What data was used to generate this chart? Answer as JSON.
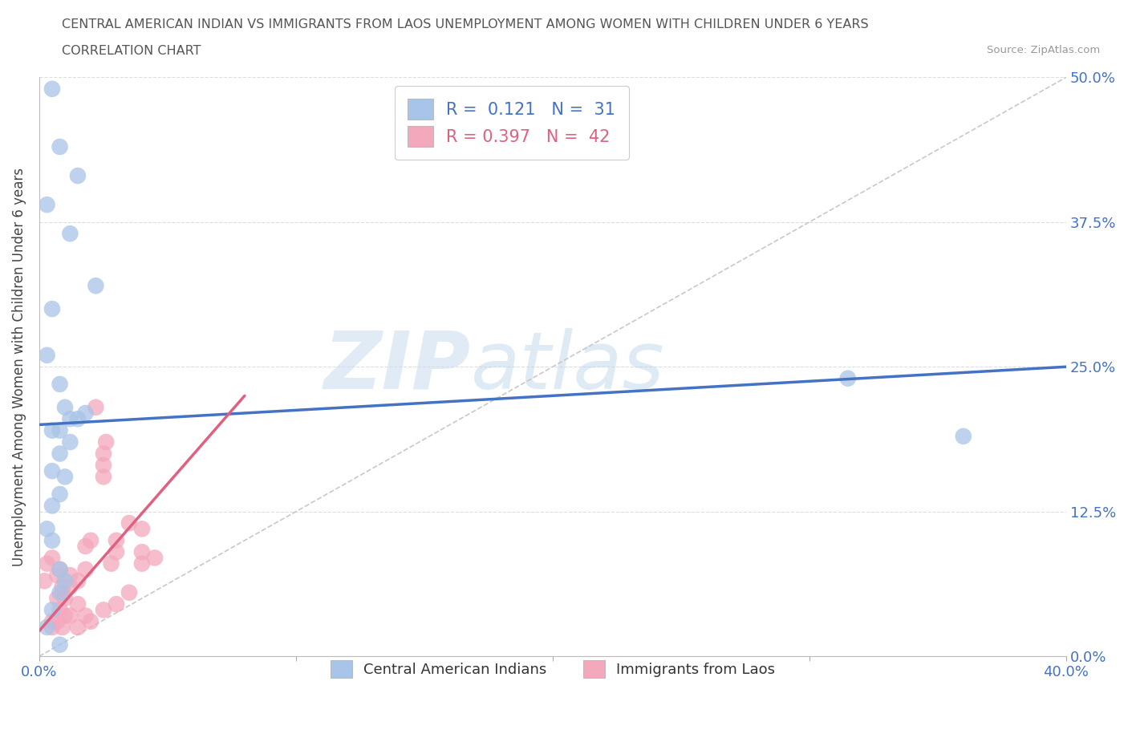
{
  "title_line1": "CENTRAL AMERICAN INDIAN VS IMMIGRANTS FROM LAOS UNEMPLOYMENT AMONG WOMEN WITH CHILDREN UNDER 6 YEARS",
  "title_line2": "CORRELATION CHART",
  "source": "Source: ZipAtlas.com",
  "ylabel": "Unemployment Among Women with Children Under 6 years",
  "xlim": [
    0.0,
    0.4
  ],
  "ylim": [
    0.0,
    0.5
  ],
  "xtick_vals": [
    0.0,
    0.1,
    0.2,
    0.3,
    0.4
  ],
  "xtick_labels": [
    "0.0%",
    "",
    "",
    "",
    "40.0%"
  ],
  "ytick_vals": [
    0.0,
    0.125,
    0.25,
    0.375,
    0.5
  ],
  "ytick_labels": [
    "0.0%",
    "12.5%",
    "25.0%",
    "37.5%",
    "50.0%"
  ],
  "watermark_zip": "ZIP",
  "watermark_atlas": "atlas",
  "blue_R": "0.121",
  "blue_N": "31",
  "pink_R": "0.397",
  "pink_N": "42",
  "blue_color": "#A8C4E8",
  "pink_color": "#F4A8BC",
  "blue_line_color": "#4472C4",
  "pink_line_color": "#E06080",
  "ref_line_color": "#C8C8C8",
  "legend_label_blue": "Central American Indians",
  "legend_label_pink": "Immigrants from Laos",
  "blue_scatter_x": [
    0.005,
    0.015,
    0.008,
    0.003,
    0.012,
    0.022,
    0.005,
    0.003,
    0.008,
    0.01,
    0.012,
    0.015,
    0.018,
    0.008,
    0.012,
    0.005,
    0.008,
    0.005,
    0.01,
    0.008,
    0.005,
    0.003,
    0.005,
    0.008,
    0.01,
    0.008,
    0.005,
    0.003,
    0.008,
    0.315,
    0.36
  ],
  "blue_scatter_y": [
    0.49,
    0.415,
    0.44,
    0.39,
    0.365,
    0.32,
    0.3,
    0.26,
    0.235,
    0.215,
    0.205,
    0.205,
    0.21,
    0.195,
    0.185,
    0.195,
    0.175,
    0.16,
    0.155,
    0.14,
    0.13,
    0.11,
    0.1,
    0.075,
    0.065,
    0.055,
    0.04,
    0.025,
    0.01,
    0.24,
    0.19
  ],
  "pink_scatter_x": [
    0.002,
    0.003,
    0.005,
    0.005,
    0.007,
    0.007,
    0.008,
    0.008,
    0.009,
    0.009,
    0.01,
    0.01,
    0.012,
    0.012,
    0.015,
    0.015,
    0.018,
    0.018,
    0.02,
    0.022,
    0.025,
    0.025,
    0.025,
    0.026,
    0.028,
    0.03,
    0.03,
    0.035,
    0.04,
    0.04,
    0.04,
    0.045,
    0.005,
    0.007,
    0.009,
    0.012,
    0.015,
    0.018,
    0.02,
    0.025,
    0.03,
    0.035
  ],
  "pink_scatter_y": [
    0.065,
    0.08,
    0.085,
    0.025,
    0.07,
    0.05,
    0.04,
    0.075,
    0.055,
    0.06,
    0.035,
    0.05,
    0.06,
    0.07,
    0.045,
    0.065,
    0.075,
    0.095,
    0.1,
    0.215,
    0.155,
    0.165,
    0.175,
    0.185,
    0.08,
    0.09,
    0.1,
    0.115,
    0.08,
    0.09,
    0.11,
    0.085,
    0.03,
    0.03,
    0.025,
    0.035,
    0.025,
    0.035,
    0.03,
    0.04,
    0.045,
    0.055
  ],
  "blue_trend_x": [
    0.0,
    0.4
  ],
  "blue_trend_y": [
    0.2,
    0.25
  ],
  "pink_trend_x": [
    0.0,
    0.08
  ],
  "pink_trend_y": [
    0.022,
    0.225
  ],
  "ref_line_x": [
    0.0,
    0.4
  ],
  "ref_line_y": [
    0.0,
    0.5
  ]
}
